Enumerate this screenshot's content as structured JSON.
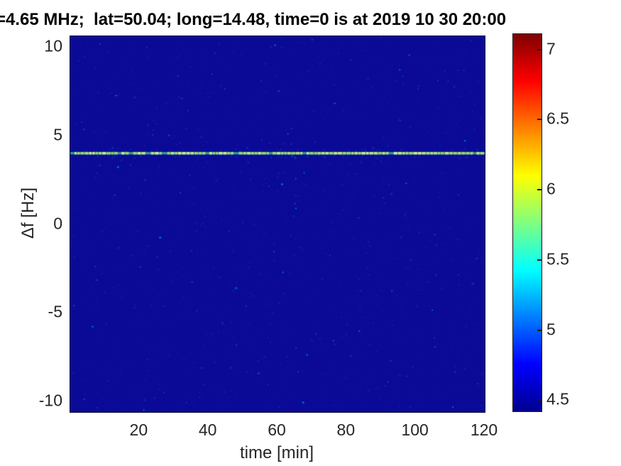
{
  "chart_data": {
    "type": "heatmap",
    "title": "=4.65 MHz;  lat=50.04; long=14.48, time=0 is at 2019 10 30 20:00",
    "xlabel": "time [min]",
    "ylabel": "Δf [Hz]",
    "xlim": [
      0,
      120
    ],
    "ylim": [
      -10.6,
      10.6
    ],
    "x_ticks": [
      20,
      40,
      60,
      80,
      100,
      120
    ],
    "y_ticks": [
      10,
      5,
      0,
      -5,
      -10
    ],
    "colormap": "jet",
    "grid": false,
    "colorbar": {
      "position": "right",
      "ticks": [
        7,
        6.5,
        6,
        5.5,
        5,
        4.5
      ],
      "vmin": 4.42,
      "vmax": 7.11
    },
    "background_level": 4.45,
    "series": [
      {
        "name": "doppler-signal-line",
        "delta_f_hz": 4,
        "time_span_min": [
          0,
          120
        ],
        "approx_level": 6.1,
        "appearance": "dashed bright yellow-green horizontal line across full width"
      }
    ],
    "noise": {
      "seed": 1234,
      "speckle_count": 2600,
      "fringe_count": 150
    },
    "colors": {
      "background": "#0a0a96",
      "line_bright": [
        "#d2ec88",
        "#c4e57c",
        "#b2dc6e",
        "#9cd766"
      ],
      "line_gap": "#2f9e8e",
      "fringe": "#1e8aa0",
      "speckles": [
        "#10109d",
        "#1717a9",
        "#1f1fba",
        "#2b2bcd",
        "#0a64d2",
        "#00a8d8"
      ]
    }
  }
}
